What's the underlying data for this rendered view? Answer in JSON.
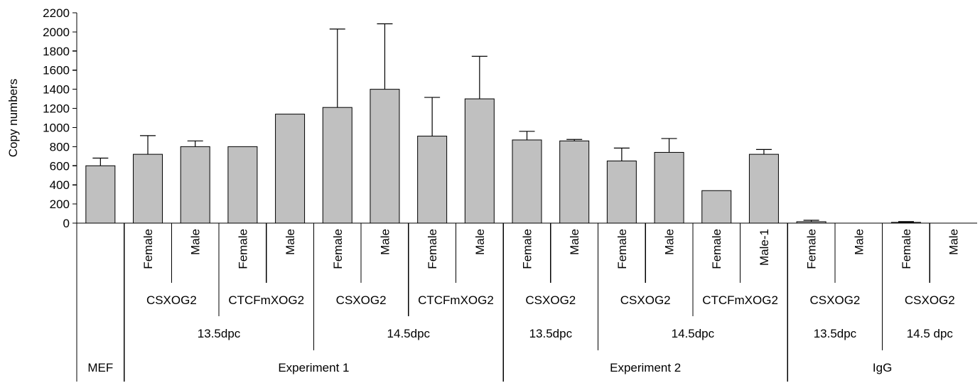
{
  "chart_data": {
    "type": "bar",
    "ylabel": "Copy numbers",
    "ylim": [
      0,
      2200
    ],
    "yticks": [
      0,
      200,
      400,
      600,
      800,
      1000,
      1200,
      1400,
      1600,
      1800,
      2000,
      2200
    ],
    "grid": false,
    "legend": "none",
    "bar_color": "#c0c0c0",
    "categories": [
      "",
      "Female",
      "Male",
      "Female",
      "Male",
      "Female",
      "Male",
      "Female",
      "Male",
      "Female",
      "Male",
      "Female",
      "Male",
      "Female",
      "Male-1",
      "Female",
      "Male",
      "Female",
      "Male"
    ],
    "values": [
      600,
      720,
      800,
      800,
      1140,
      1210,
      1400,
      910,
      1300,
      870,
      860,
      650,
      740,
      340,
      720,
      15,
      0,
      8,
      0
    ],
    "error_upper": [
      80,
      195,
      60,
      0,
      0,
      820,
      685,
      405,
      445,
      90,
      15,
      135,
      145,
      0,
      50,
      15,
      0,
      8,
      0
    ],
    "label_rows": [
      {
        "level": "construct",
        "groups": [
          {
            "label": "CSXOG2",
            "start": 1,
            "end": 2
          },
          {
            "label": "CTCFmXOG2",
            "start": 3,
            "end": 4
          },
          {
            "label": "CSXOG2",
            "start": 5,
            "end": 6
          },
          {
            "label": "CTCFmXOG2",
            "start": 7,
            "end": 8
          },
          {
            "label": "CSXOG2",
            "start": 9,
            "end": 10
          },
          {
            "label": "CSXOG2",
            "start": 11,
            "end": 12
          },
          {
            "label": "CTCFmXOG2",
            "start": 13,
            "end": 14
          },
          {
            "label": "CSXOG2",
            "start": 15,
            "end": 16
          },
          {
            "label": "CSXOG2",
            "start": 17,
            "end": 18
          }
        ]
      },
      {
        "level": "stage",
        "groups": [
          {
            "label": "13.5dpc",
            "start": 1,
            "end": 4
          },
          {
            "label": "14.5dpc",
            "start": 5,
            "end": 8
          },
          {
            "label": "13.5dpc",
            "start": 9,
            "end": 10
          },
          {
            "label": "14.5dpc",
            "start": 11,
            "end": 14
          },
          {
            "label": "13.5dpc",
            "start": 15,
            "end": 16
          },
          {
            "label": "14.5 dpc",
            "start": 17,
            "end": 18
          }
        ]
      },
      {
        "level": "experiment",
        "groups": [
          {
            "label": "MEF",
            "start": 0,
            "end": 0
          },
          {
            "label": "Experiment 1",
            "start": 1,
            "end": 8
          },
          {
            "label": "Experiment 2",
            "start": 9,
            "end": 14
          },
          {
            "label": "IgG",
            "start": 15,
            "end": 18
          }
        ]
      }
    ]
  }
}
